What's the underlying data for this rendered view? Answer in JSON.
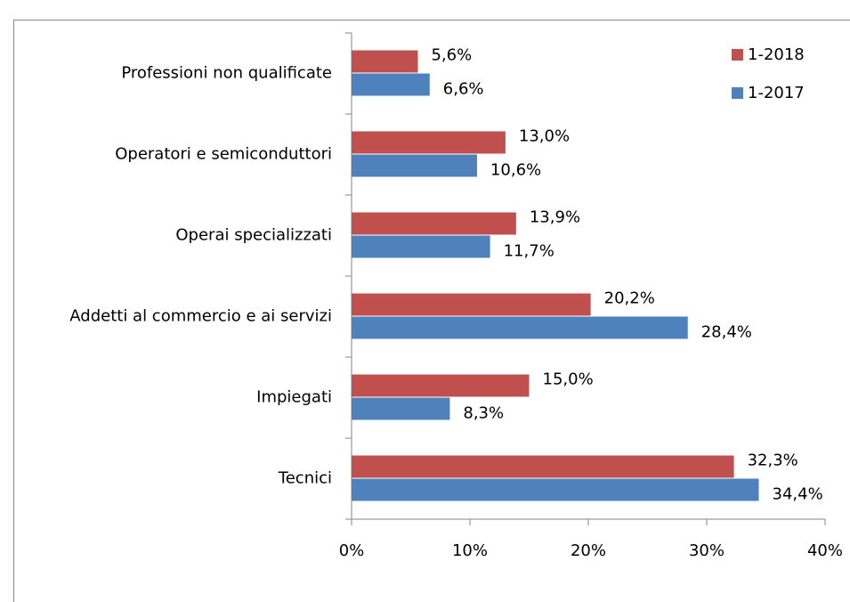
{
  "chart_data": {
    "type": "hbar",
    "categories": [
      "Professioni non qualificate",
      "Operatori e semiconduttori",
      "Operai specializzati",
      "Addetti al commercio e ai servizi",
      "Impiegati",
      "Tecnici"
    ],
    "series": [
      {
        "name": "1-2018",
        "color": "#c0504d",
        "values": [
          5.6,
          13.0,
          13.9,
          20.2,
          15.0,
          32.3
        ],
        "value_labels": [
          "5,6%",
          "13,0%",
          "13,9%",
          "20,2%",
          "15,0%",
          "32,3%"
        ]
      },
      {
        "name": "1-2017",
        "color": "#4f81bd",
        "values": [
          6.6,
          10.6,
          11.7,
          28.4,
          8.3,
          34.4
        ],
        "value_labels": [
          "6,6%",
          "10,6%",
          "11,7%",
          "28,4%",
          "8,3%",
          "34,4%"
        ]
      }
    ],
    "xlim": [
      0,
      40
    ],
    "xticks": [
      {
        "value": 0,
        "label": "0%"
      },
      {
        "value": 10,
        "label": "10%"
      },
      {
        "value": 20,
        "label": "20%"
      },
      {
        "value": 30,
        "label": "30%"
      },
      {
        "value": 40,
        "label": "40%"
      }
    ],
    "legend": "top-right"
  }
}
